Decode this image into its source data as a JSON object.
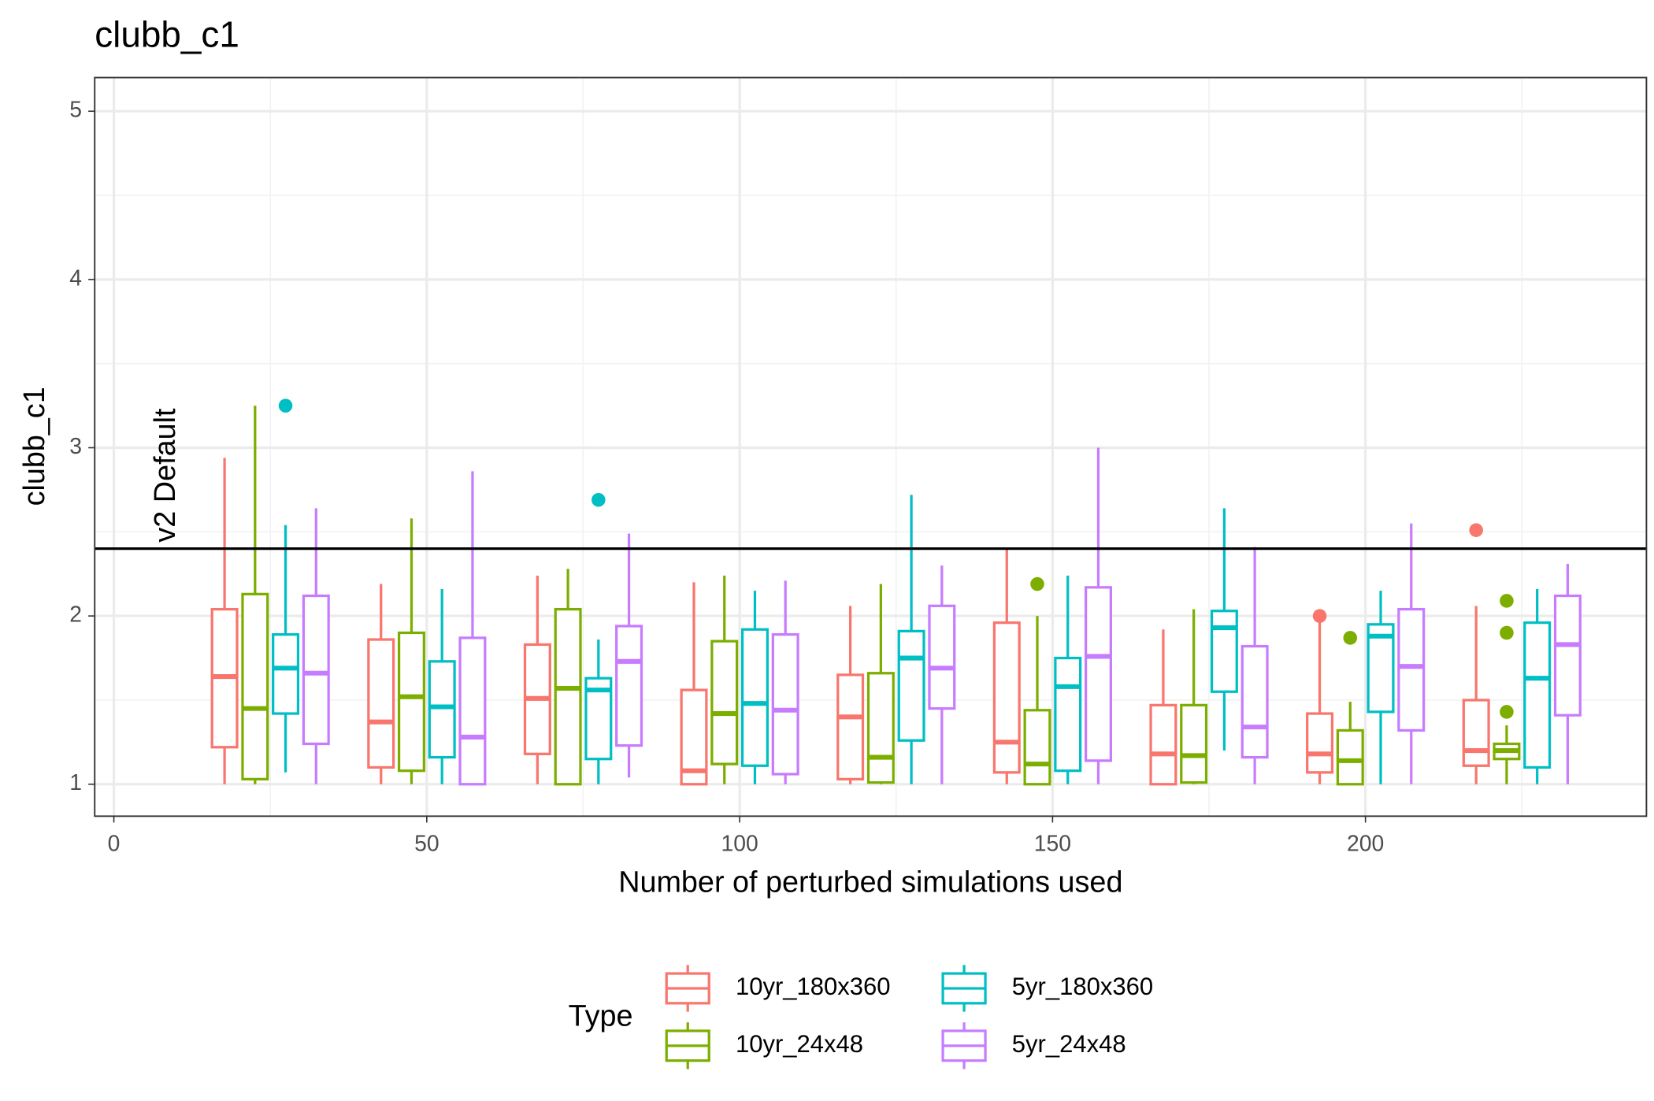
{
  "chart_data": {
    "type": "boxplot",
    "title": "clubb_c1",
    "x_label": "Number of perturbed simulations used",
    "y_label": "clubb_c1",
    "legend_title": "Type",
    "legend_position": "bottom",
    "grid": true,
    "x": [
      25,
      50,
      75,
      100,
      125,
      150,
      175,
      200,
      225
    ],
    "xlim": [
      -3.06,
      244.9
    ],
    "xticks": [
      0,
      50,
      100,
      150,
      200
    ],
    "ylim": [
      0.81,
      5.2
    ],
    "yticks": [
      1,
      2,
      3,
      4,
      5
    ],
    "reference_line": {
      "value": 2.4,
      "label": "v2 Default",
      "x": 8.5
    },
    "series": [
      {
        "name": "10yr_180x360",
        "color": "#f8766d",
        "boxes": [
          {
            "min": 1.0,
            "q1": 1.22,
            "median": 1.64,
            "q3": 2.04,
            "max": 2.94,
            "outliers": []
          },
          {
            "min": 1.0,
            "q1": 1.1,
            "median": 1.37,
            "q3": 1.86,
            "max": 2.19,
            "outliers": []
          },
          {
            "min": 1.0,
            "q1": 1.18,
            "median": 1.51,
            "q3": 1.83,
            "max": 2.24,
            "outliers": []
          },
          {
            "min": 1.0,
            "q1": 1.0,
            "median": 1.08,
            "q3": 1.56,
            "max": 2.2,
            "outliers": []
          },
          {
            "min": 1.0,
            "q1": 1.03,
            "median": 1.4,
            "q3": 1.65,
            "max": 2.06,
            "outliers": []
          },
          {
            "min": 1.0,
            "q1": 1.07,
            "median": 1.25,
            "q3": 1.96,
            "max": 2.4,
            "outliers": []
          },
          {
            "min": 1.0,
            "q1": 1.0,
            "median": 1.18,
            "q3": 1.47,
            "max": 1.92,
            "outliers": []
          },
          {
            "min": 1.0,
            "q1": 1.07,
            "median": 1.18,
            "q3": 1.42,
            "max": 1.99,
            "outliers": [
              2.0
            ]
          },
          {
            "min": 1.0,
            "q1": 1.11,
            "median": 1.2,
            "q3": 1.5,
            "max": 2.06,
            "outliers": [
              2.51
            ]
          }
        ]
      },
      {
        "name": "10yr_24x48",
        "color": "#7cae00",
        "boxes": [
          {
            "min": 1.0,
            "q1": 1.03,
            "median": 1.45,
            "q3": 2.13,
            "max": 3.25,
            "outliers": []
          },
          {
            "min": 1.0,
            "q1": 1.08,
            "median": 1.52,
            "q3": 1.9,
            "max": 2.58,
            "outliers": []
          },
          {
            "min": 1.0,
            "q1": 1.0,
            "median": 1.57,
            "q3": 2.04,
            "max": 2.28,
            "outliers": []
          },
          {
            "min": 1.0,
            "q1": 1.12,
            "median": 1.42,
            "q3": 1.85,
            "max": 2.24,
            "outliers": []
          },
          {
            "min": 1.0,
            "q1": 1.01,
            "median": 1.16,
            "q3": 1.66,
            "max": 2.19,
            "outliers": []
          },
          {
            "min": 1.0,
            "q1": 1.0,
            "median": 1.12,
            "q3": 1.44,
            "max": 2.0,
            "outliers": [
              2.19
            ]
          },
          {
            "min": 1.0,
            "q1": 1.01,
            "median": 1.17,
            "q3": 1.47,
            "max": 2.04,
            "outliers": []
          },
          {
            "min": 1.0,
            "q1": 1.0,
            "median": 1.14,
            "q3": 1.32,
            "max": 1.49,
            "outliers": [
              1.87
            ]
          },
          {
            "min": 1.0,
            "q1": 1.15,
            "median": 1.2,
            "q3": 1.24,
            "max": 1.35,
            "outliers": [
              2.09,
              1.9,
              1.43
            ]
          }
        ]
      },
      {
        "name": "5yr_180x360",
        "color": "#00bfc4",
        "boxes": [
          {
            "min": 1.07,
            "q1": 1.42,
            "median": 1.69,
            "q3": 1.89,
            "max": 2.54,
            "outliers": [
              3.25
            ]
          },
          {
            "min": 1.0,
            "q1": 1.16,
            "median": 1.46,
            "q3": 1.73,
            "max": 2.16,
            "outliers": []
          },
          {
            "min": 1.0,
            "q1": 1.15,
            "median": 1.56,
            "q3": 1.63,
            "max": 1.86,
            "outliers": [
              2.69
            ]
          },
          {
            "min": 1.0,
            "q1": 1.11,
            "median": 1.48,
            "q3": 1.92,
            "max": 2.15,
            "outliers": []
          },
          {
            "min": 1.0,
            "q1": 1.26,
            "median": 1.75,
            "q3": 1.91,
            "max": 2.72,
            "outliers": []
          },
          {
            "min": 1.0,
            "q1": 1.08,
            "median": 1.58,
            "q3": 1.75,
            "max": 2.24,
            "outliers": []
          },
          {
            "min": 1.2,
            "q1": 1.55,
            "median": 1.93,
            "q3": 2.03,
            "max": 2.64,
            "outliers": []
          },
          {
            "min": 1.0,
            "q1": 1.43,
            "median": 1.88,
            "q3": 1.95,
            "max": 2.15,
            "outliers": []
          },
          {
            "min": 1.0,
            "q1": 1.1,
            "median": 1.63,
            "q3": 1.96,
            "max": 2.16,
            "outliers": []
          }
        ]
      },
      {
        "name": "5yr_24x48",
        "color": "#c77cff",
        "boxes": [
          {
            "min": 1.0,
            "q1": 1.24,
            "median": 1.66,
            "q3": 2.12,
            "max": 2.64,
            "outliers": []
          },
          {
            "min": 1.0,
            "q1": 1.0,
            "median": 1.28,
            "q3": 1.87,
            "max": 2.86,
            "outliers": []
          },
          {
            "min": 1.04,
            "q1": 1.23,
            "median": 1.73,
            "q3": 1.94,
            "max": 2.49,
            "outliers": []
          },
          {
            "min": 1.0,
            "q1": 1.06,
            "median": 1.44,
            "q3": 1.89,
            "max": 2.21,
            "outliers": []
          },
          {
            "min": 1.0,
            "q1": 1.45,
            "median": 1.69,
            "q3": 2.06,
            "max": 2.3,
            "outliers": []
          },
          {
            "min": 1.0,
            "q1": 1.14,
            "median": 1.76,
            "q3": 2.17,
            "max": 3.0,
            "outliers": []
          },
          {
            "min": 1.0,
            "q1": 1.16,
            "median": 1.34,
            "q3": 1.82,
            "max": 2.41,
            "outliers": []
          },
          {
            "min": 1.0,
            "q1": 1.32,
            "median": 1.7,
            "q3": 2.04,
            "max": 2.55,
            "outliers": []
          },
          {
            "min": 1.0,
            "q1": 1.41,
            "median": 1.83,
            "q3": 2.12,
            "max": 2.31,
            "outliers": []
          }
        ]
      }
    ]
  }
}
